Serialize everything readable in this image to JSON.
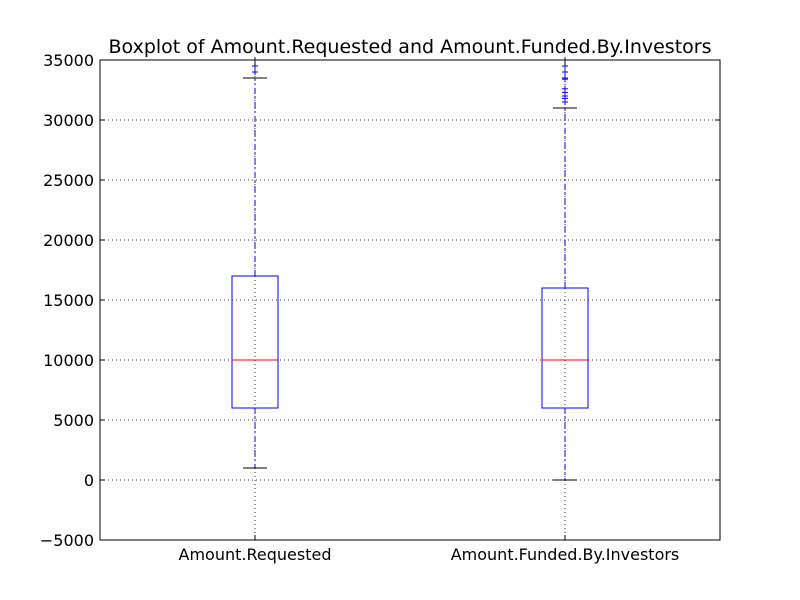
{
  "chart_data": {
    "type": "box",
    "title": "Boxplot of Amount.Requested and Amount.Funded.By.Investors",
    "xlabel": "",
    "ylabel": "",
    "ylim": [
      -5000,
      35000
    ],
    "yticks": [
      -5000,
      0,
      5000,
      10000,
      15000,
      20000,
      25000,
      30000,
      35000
    ],
    "ytick_labels": [
      "−5000",
      "0",
      "5000",
      "10000",
      "15000",
      "20000",
      "25000",
      "30000",
      "35000"
    ],
    "grid": true,
    "categories": [
      "Amount.Requested",
      "Amount.Funded.By.Investors"
    ],
    "series": [
      {
        "whisker_low": 1000,
        "q1": 6000,
        "median": 10000,
        "q3": 17000,
        "whisker_high": 33500,
        "outliers": [
          34000,
          34500,
          35000
        ]
      },
      {
        "whisker_low": 0,
        "q1": 6000,
        "median": 10000,
        "q3": 16000,
        "whisker_high": 31000,
        "outliers": [
          31500,
          31800,
          32000,
          32300,
          32600,
          33400,
          33500,
          34000,
          34500,
          35000
        ]
      }
    ],
    "colors": {
      "box": "#0000ff",
      "median": "#ff0000",
      "whisker": "#0000ff",
      "cap": "#000000",
      "outlier": "#0000ff",
      "grid": "#000000",
      "axes": "#000000"
    }
  }
}
